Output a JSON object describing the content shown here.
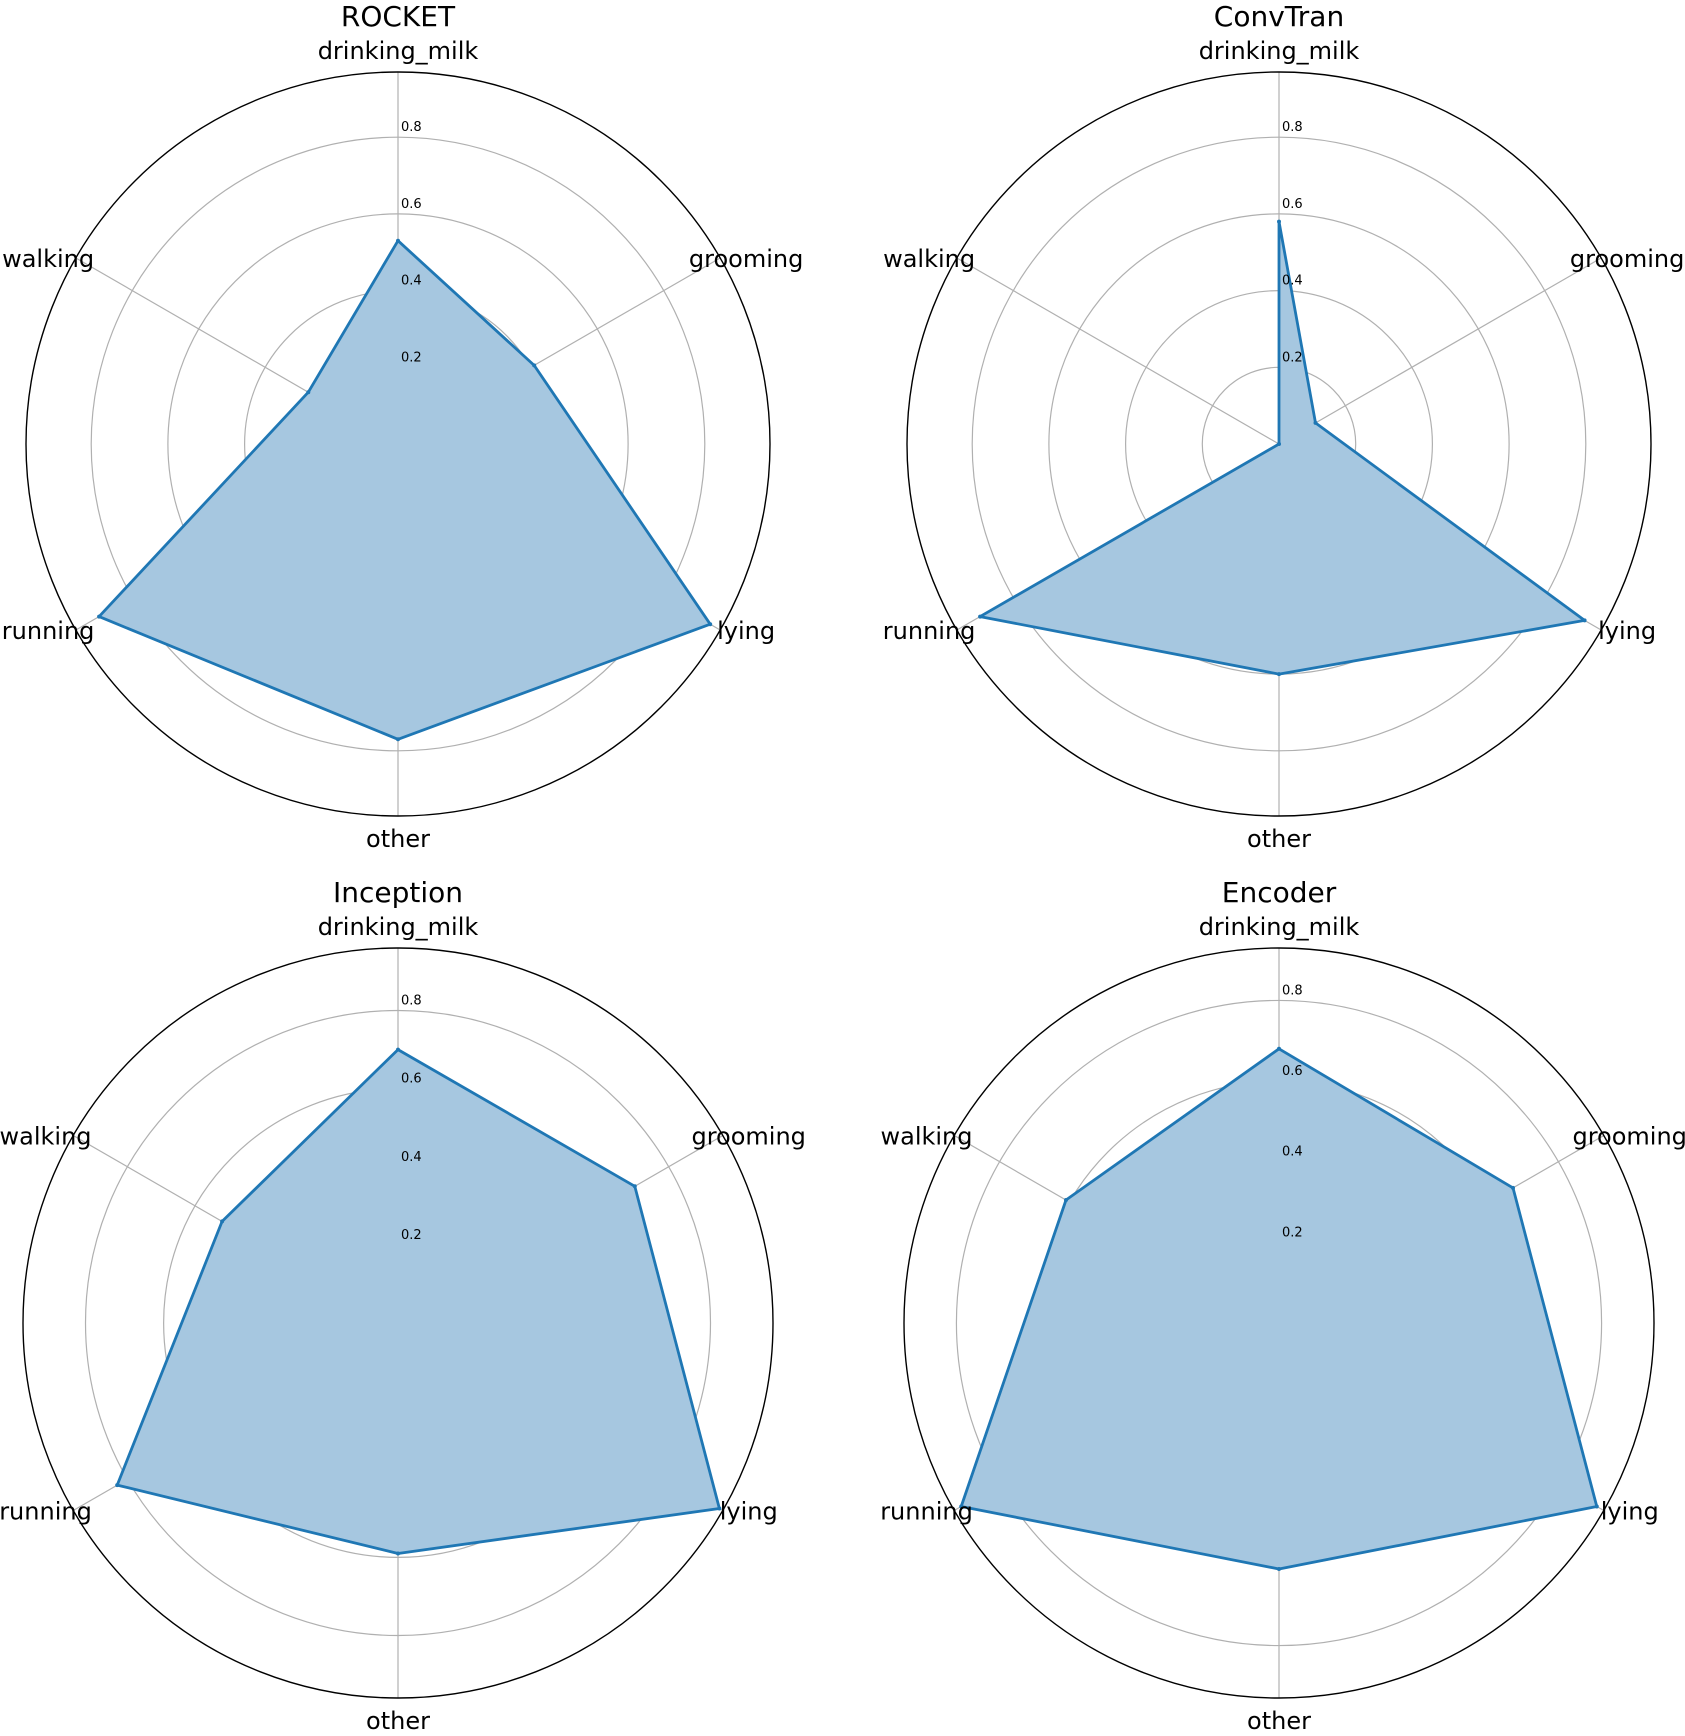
{
  "chart_data": [
    {
      "type": "radar",
      "title": "ROCKET",
      "categories": [
        "drinking_milk",
        "grooming",
        "lying",
        "other",
        "running",
        "walking"
      ],
      "values": [
        0.53,
        0.41,
        0.94,
        0.77,
        0.9,
        0.27
      ],
      "rmax": 0.97,
      "ticks": [
        0.2,
        0.4,
        0.6,
        0.8
      ],
      "tick_labels": [
        "0.2",
        "0.4",
        "0.6",
        "0.8"
      ]
    },
    {
      "type": "radar",
      "title": "ConvTran",
      "categories": [
        "drinking_milk",
        "grooming",
        "lying",
        "other",
        "running",
        "walking"
      ],
      "values": [
        0.58,
        0.11,
        0.92,
        0.6,
        0.9,
        0.0
      ],
      "rmax": 0.97,
      "ticks": [
        0.2,
        0.4,
        0.6,
        0.8
      ],
      "tick_labels": [
        "0.2",
        "0.4",
        "0.6",
        "0.8"
      ]
    },
    {
      "type": "radar",
      "title": "Inception",
      "categories": [
        "drinking_milk",
        "grooming",
        "lying",
        "other",
        "running",
        "walking"
      ],
      "values": [
        0.7,
        0.7,
        0.95,
        0.59,
        0.83,
        0.52
      ],
      "rmax": 0.96,
      "ticks": [
        0.2,
        0.4,
        0.6,
        0.8
      ],
      "tick_labels": [
        "0.2",
        "0.4",
        "0.6",
        "0.8"
      ]
    },
    {
      "type": "radar",
      "title": "Encoder",
      "categories": [
        "drinking_milk",
        "grooming",
        "lying",
        "other",
        "running",
        "walking"
      ],
      "values": [
        0.68,
        0.67,
        0.91,
        0.61,
        0.91,
        0.61
      ],
      "rmax": 0.93,
      "ticks": [
        0.2,
        0.4,
        0.6,
        0.8
      ],
      "tick_labels": [
        "0.2",
        "0.4",
        "0.6",
        "0.8"
      ]
    }
  ],
  "colors": {
    "line": "#1f77b4",
    "fill": "#a6c7e0",
    "grid": "#b0b0b0",
    "frame": "#000000"
  }
}
